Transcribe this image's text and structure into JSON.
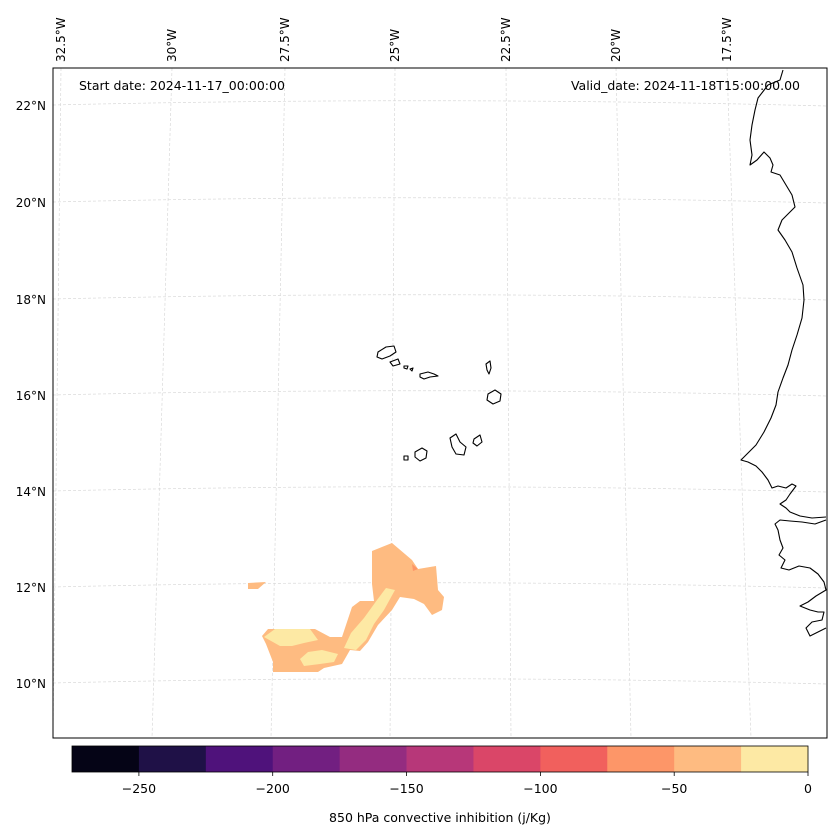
{
  "map": {
    "start_date": "Start date: 2024-11-17_00:00:00",
    "valid_date": "Valid_date: 2024-11-18T15:00:00.00",
    "lon_labels": [
      "32.5°W",
      "30°W",
      "27.5°W",
      "25°W",
      "22.5°W",
      "20°W",
      "17.5°W"
    ],
    "lat_labels": [
      "22°N",
      "20°N",
      "18°N",
      "16°N",
      "14°N",
      "12°N",
      "10°N"
    ],
    "variable": "850 hPa convective inhibition",
    "units": "j/Kg"
  },
  "colorbar": {
    "label": "850 hPa convective inhibition (j/Kg)",
    "tick_labels": [
      "−250",
      "−200",
      "−150",
      "−100",
      "−50",
      "0"
    ],
    "colors": [
      "#050416",
      "#1f1147",
      "#4f127b",
      "#721f81",
      "#942c80",
      "#b73779",
      "#da4668",
      "#f1605d",
      "#fd9668",
      "#febb81",
      "#fde9a4"
    ]
  }
}
